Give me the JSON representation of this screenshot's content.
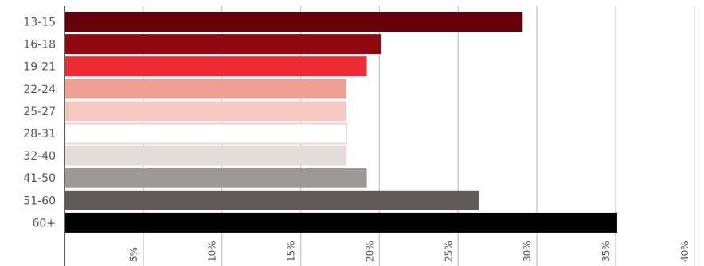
{
  "chart_data": {
    "type": "bar",
    "orientation": "horizontal",
    "categories": [
      "13-15",
      "16-18",
      "19-21",
      "22-24",
      "25-27",
      "28-31",
      "32-40",
      "41-50",
      "51-60",
      "60+"
    ],
    "values": [
      29.1,
      20.1,
      19.2,
      17.9,
      17.9,
      17.9,
      17.9,
      19.2,
      26.3,
      35.1
    ],
    "colors": [
      "#670008",
      "#8e0a10",
      "#ee2b34",
      "#efa095",
      "#f5c8c2",
      "#ffffff",
      "#e5dbd7",
      "#9b9896",
      "#605b59",
      "#000000"
    ],
    "xlim": [
      0,
      40
    ],
    "xticks": [
      5,
      10,
      15,
      20,
      25,
      30,
      35,
      40
    ],
    "xtick_labels": [
      "5%",
      "10%",
      "15%",
      "20%",
      "25%",
      "30%",
      "35%",
      "40%"
    ],
    "grid": true,
    "title": "",
    "xlabel": "",
    "ylabel": ""
  }
}
